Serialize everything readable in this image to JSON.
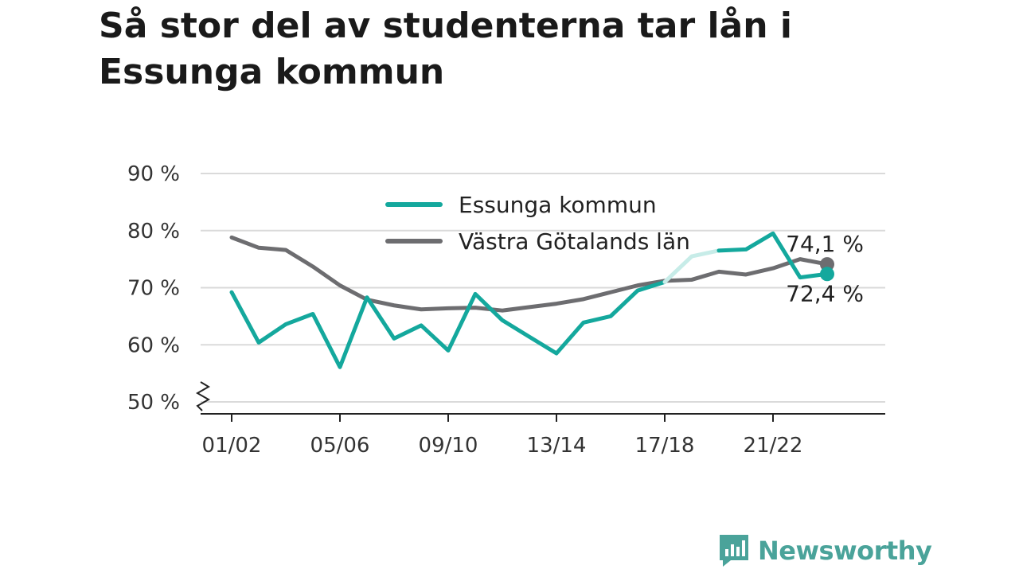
{
  "title": "Så stor del av studenterna tar lån i Essunga kommun",
  "brand": {
    "name": "Newsworthy",
    "logo_icon": "newsworthy-chart-bubble-icon",
    "color": "#4aa39a"
  },
  "chart_data": {
    "type": "line",
    "title": "Så stor del av studenterna tar lån i Essunga kommun",
    "xlabel": "",
    "ylabel": "",
    "ylim": [
      50,
      90
    ],
    "yticks": [
      50,
      60,
      70,
      80,
      90
    ],
    "ytick_labels": [
      "50 %",
      "60 %",
      "70 %",
      "80 %",
      "90 %"
    ],
    "y_axis_break": true,
    "grid": "horizontal",
    "legend_position": "top-center",
    "x": [
      "01/02",
      "02/03",
      "03/04",
      "04/05",
      "05/06",
      "06/07",
      "07/08",
      "08/09",
      "09/10",
      "10/11",
      "11/12",
      "12/13",
      "13/14",
      "14/15",
      "15/16",
      "16/17",
      "17/18",
      "18/19",
      "19/20",
      "20/21",
      "21/22",
      "22/23",
      "23/24"
    ],
    "xticks": [
      "01/02",
      "05/06",
      "09/10",
      "13/14",
      "17/18",
      "21/22"
    ],
    "series": [
      {
        "name": "Essunga kommun",
        "color": "#14a89d",
        "values": [
          69.2,
          60.4,
          63.6,
          65.4,
          56.1,
          68.3,
          61.1,
          63.4,
          59.0,
          68.9,
          64.3,
          61.4,
          58.5,
          63.9,
          65.0,
          69.5,
          71.0,
          75.5,
          76.5,
          76.7,
          79.5,
          71.8,
          72.4
        ],
        "faded_segment": [
          "17/18",
          "19/20"
        ],
        "end_label": "72,4 %"
      },
      {
        "name": "Västra Götalands län",
        "color": "#6d6d70",
        "values": [
          78.8,
          77.0,
          76.6,
          73.7,
          70.4,
          67.9,
          66.9,
          66.2,
          66.4,
          66.5,
          66.0,
          66.6,
          67.2,
          68.0,
          69.2,
          70.4,
          71.2,
          71.4,
          72.8,
          72.3,
          73.4,
          75.0,
          74.1
        ],
        "end_label": "74,1 %"
      }
    ]
  }
}
